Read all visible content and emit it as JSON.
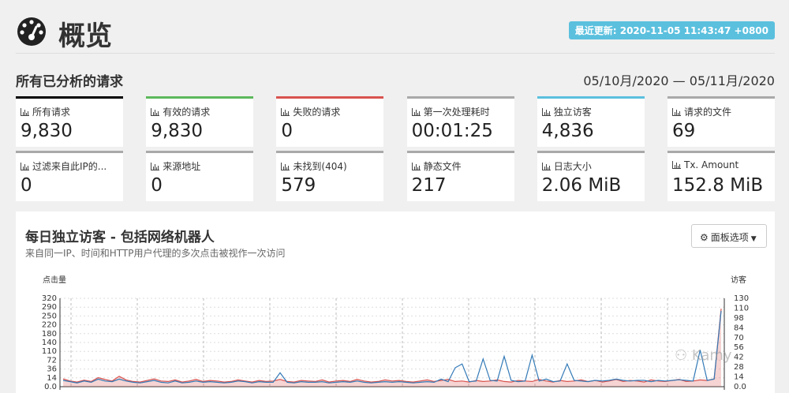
{
  "header": {
    "title": "概览",
    "updated_badge": "最近更新: 2020-11-05 11:43:47 +0800"
  },
  "section": {
    "title": "所有已分析的请求",
    "date_range": "05/10月/2020 — 05/11月/2020"
  },
  "cards": [
    {
      "label": "所有请求",
      "value": "9,830",
      "color": "#000000"
    },
    {
      "label": "有效的请求",
      "value": "9,830",
      "color": "#5cb85c"
    },
    {
      "label": "失败的请求",
      "value": "0",
      "color": "#d9534f"
    },
    {
      "label": "第一次处理耗时",
      "value": "00:01:25",
      "color": "#a9a9a9"
    },
    {
      "label": "独立访客",
      "value": "4,836",
      "color": "#5bc0de"
    },
    {
      "label": "请求的文件",
      "value": "69",
      "color": "#a9a9a9"
    },
    {
      "label": "过滤来自此IP的...",
      "value": "0",
      "color": "#a9a9a9"
    },
    {
      "label": "来源地址",
      "value": "0",
      "color": "#a9a9a9"
    },
    {
      "label": "未找到(404)",
      "value": "579",
      "color": "#a9a9a9"
    },
    {
      "label": "静态文件",
      "value": "217",
      "color": "#a9a9a9"
    },
    {
      "label": "日志大小",
      "value": "2.06 MiB",
      "color": "#a9a9a9"
    },
    {
      "label": "Tx. Amount",
      "value": "152.8 MiB",
      "color": "#a9a9a9"
    }
  ],
  "panel": {
    "title": "每日独立访客 - 包括网络机器人",
    "subtitle": "来自同一IP、时间和HTTP用户代理的多次点击被视作一次访问",
    "options_button": "面板选项"
  },
  "chart_data": {
    "type": "line",
    "ylabel_left": "点击量",
    "ylabel_right": "访客",
    "left_ticks": [
      "0.0",
      "14",
      "36",
      "72",
      "110",
      "140",
      "180",
      "220",
      "250",
      "290",
      "320"
    ],
    "right_ticks": [
      "0.0",
      "14",
      "28",
      "42",
      "56",
      "70",
      "84",
      "98",
      "110",
      "130"
    ],
    "series": [
      {
        "name": "点击量",
        "color": "#d9534f",
        "axis": "left",
        "values": [
          30,
          22,
          18,
          25,
          20,
          35,
          28,
          22,
          40,
          26,
          20,
          18,
          24,
          30,
          22,
          20,
          26,
          18,
          22,
          28,
          20,
          24,
          22,
          18,
          20,
          26,
          22,
          18,
          24,
          20,
          22,
          28,
          20,
          18,
          24,
          22,
          20,
          26,
          18,
          22,
          24,
          20,
          28,
          22,
          18,
          20,
          26,
          22,
          24,
          20,
          18,
          22,
          26,
          20,
          24,
          28,
          20,
          22,
          18,
          24,
          20,
          22,
          26,
          20,
          18,
          24,
          22,
          20,
          28,
          22,
          18,
          24,
          20,
          22,
          26,
          20,
          24,
          18,
          22,
          28,
          20,
          24,
          22,
          18,
          26,
          22,
          20,
          24,
          28,
          20,
          22,
          26,
          24,
          30,
          300
        ]
      },
      {
        "name": "访客",
        "color": "#337ab7",
        "axis": "right",
        "values": [
          10,
          8,
          6,
          9,
          7,
          12,
          9,
          8,
          12,
          9,
          7,
          6,
          8,
          10,
          7,
          6,
          9,
          6,
          7,
          9,
          7,
          8,
          7,
          6,
          7,
          9,
          8,
          6,
          8,
          7,
          7,
          22,
          7,
          6,
          8,
          7,
          7,
          8,
          6,
          7,
          8,
          7,
          9,
          7,
          6,
          7,
          8,
          7,
          8,
          7,
          6,
          7,
          8,
          7,
          12,
          8,
          30,
          36,
          8,
          9,
          44,
          10,
          9,
          48,
          10,
          8,
          9,
          50,
          9,
          12,
          8,
          9,
          36,
          10,
          9,
          8,
          10,
          9,
          10,
          12,
          10,
          9,
          10,
          10,
          8,
          10,
          9,
          10,
          11,
          10,
          9,
          58,
          10,
          12,
          120
        ]
      }
    ]
  }
}
